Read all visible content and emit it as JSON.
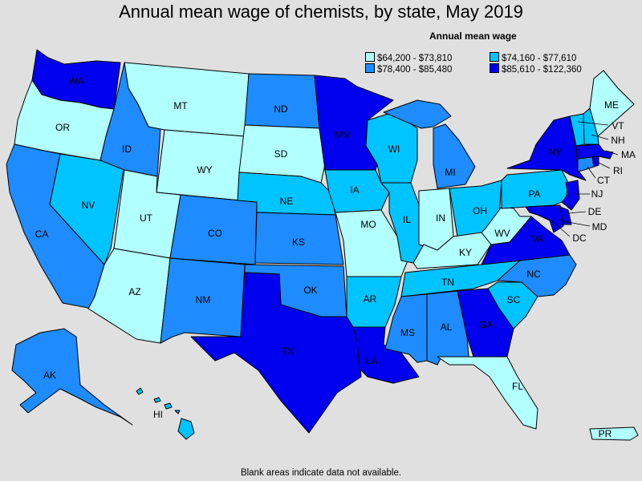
{
  "title": "Annual mean wage of chemists, by state, May 2019",
  "footnote": "Blank areas indicate data not available.",
  "legend": {
    "title": "Annual mean wage",
    "bins": [
      {
        "label": "$64,200 - $73,810",
        "color": "#b2ffff"
      },
      {
        "label": "$74,160 - $77,610",
        "color": "#00c4ff"
      },
      {
        "label": "$78,400 - $85,480",
        "color": "#1e8cff"
      },
      {
        "label": "$85,610 - $122,360",
        "color": "#0000ee"
      }
    ]
  },
  "state_bins": {
    "WA": 3,
    "OR": 0,
    "CA": 2,
    "NV": 1,
    "ID": 2,
    "MT": 0,
    "WY": 0,
    "UT": 0,
    "AZ": 0,
    "CO": 2,
    "NM": 2,
    "ND": 2,
    "SD": 0,
    "NE": 1,
    "KS": 2,
    "OK": 2,
    "TX": 3,
    "MN": 3,
    "IA": 1,
    "MO": 0,
    "AR": 1,
    "LA": 3,
    "WI": 1,
    "IL": 1,
    "MI": 2,
    "IN": 0,
    "OH": 1,
    "KY": 0,
    "TN": 1,
    "MS": 2,
    "AL": 2,
    "GA": 3,
    "FL": 0,
    "SC": 1,
    "NC": 2,
    "VA": 3,
    "WV": 0,
    "PA": 1,
    "NY": 3,
    "NJ": 3,
    "DE": 3,
    "MD": 3,
    "DC": 3,
    "CT": 2,
    "RI": 3,
    "MA": 3,
    "VT": 1,
    "NH": 1,
    "ME": 0,
    "AK": 2,
    "HI": 1,
    "PR": 0
  },
  "state_labels": {
    "WA": "WA",
    "OR": "OR",
    "CA": "CA",
    "NV": "NV",
    "ID": "ID",
    "MT": "MT",
    "WY": "WY",
    "UT": "UT",
    "AZ": "AZ",
    "CO": "CO",
    "NM": "NM",
    "ND": "ND",
    "SD": "SD",
    "NE": "NE",
    "KS": "KS",
    "OK": "OK",
    "TX": "TX",
    "MN": "MN",
    "IA": "IA",
    "MO": "MO",
    "AR": "AR",
    "LA": "LA",
    "WI": "WI",
    "IL": "IL",
    "MI": "MI",
    "IN": "IN",
    "OH": "OH",
    "KY": "KY",
    "TN": "TN",
    "MS": "MS",
    "AL": "AL",
    "GA": "GA",
    "FL": "FL",
    "SC": "SC",
    "NC": "NC",
    "VA": "VA",
    "WV": "WV",
    "PA": "PA",
    "NY": "NY",
    "NJ": "NJ",
    "DE": "DE",
    "MD": "MD",
    "DC": "DC",
    "CT": "CT",
    "RI": "RI",
    "MA": "MA",
    "VT": "VT",
    "NH": "NH",
    "ME": "ME",
    "AK": "AK",
    "HI": "HI",
    "PR": "PR"
  }
}
